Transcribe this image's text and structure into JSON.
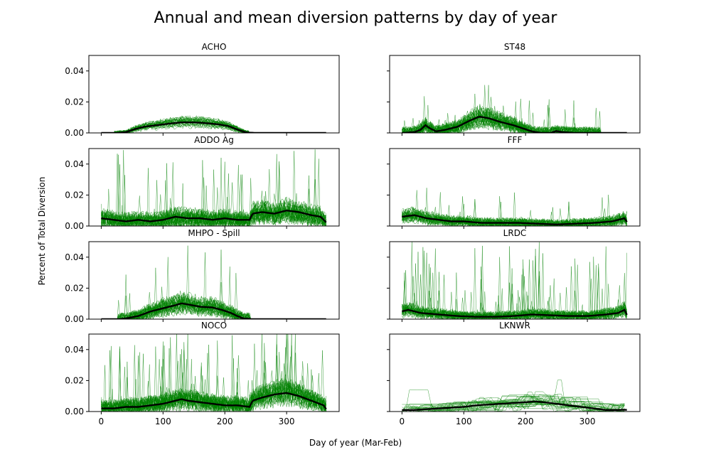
{
  "figure": {
    "title": "Annual and mean diversion patterns by day of year",
    "xlabel": "Day of year (Mar-Feb)",
    "ylabel": "Percent of Total Diversion"
  },
  "colors": {
    "annual": "#008000",
    "mean": "#000000",
    "frame": "#000000",
    "background": "#ffffff"
  },
  "chart_data": [
    {
      "type": "line",
      "title": "ACHO",
      "xlim": [
        -20,
        385
      ],
      "ylim": [
        0,
        0.05
      ],
      "x_ticks": [
        0,
        100,
        200,
        300
      ],
      "y_ticks": [
        0.0,
        0.02,
        0.04
      ],
      "y_tick_labels": [
        "0.00",
        "0.02",
        "0.04"
      ],
      "x_tick_labels": [
        "0",
        "100",
        "200",
        "300"
      ],
      "mean": {
        "x": [
          0,
          25,
          40,
          55,
          70,
          90,
          110,
          130,
          150,
          170,
          190,
          205,
          215,
          225,
          235,
          250,
          300,
          365
        ],
        "y": [
          0,
          0,
          0.0005,
          0.0025,
          0.004,
          0.005,
          0.006,
          0.0068,
          0.0068,
          0.0063,
          0.0055,
          0.0045,
          0.003,
          0.0015,
          0.0003,
          0,
          0,
          0
        ]
      },
      "annual": {
        "count": 30,
        "noise": 0.0014,
        "spikes": 0,
        "peak": 0.009,
        "zeroAfter": 238,
        "zeroBefore": 22
      }
    },
    {
      "type": "line",
      "title": "ST48",
      "xlim": [
        -20,
        385
      ],
      "ylim": [
        0,
        0.05
      ],
      "x_ticks": [
        0,
        100,
        200,
        300
      ],
      "y_ticks": [
        0.0,
        0.02,
        0.04
      ],
      "y_tick_labels": [
        "0.00",
        "0.02",
        "0.04"
      ],
      "x_tick_labels": [
        "0",
        "100",
        "200",
        "300"
      ],
      "mean": {
        "x": [
          0,
          20,
          30,
          38,
          45,
          55,
          70,
          90,
          110,
          125,
          140,
          160,
          180,
          195,
          210,
          225,
          240,
          250,
          260,
          280,
          300,
          365
        ],
        "y": [
          0,
          0.0005,
          0.002,
          0.005,
          0.003,
          0.001,
          0.002,
          0.004,
          0.008,
          0.0105,
          0.0095,
          0.007,
          0.005,
          0.003,
          0.001,
          0,
          0,
          0.0012,
          0.0005,
          0,
          0,
          0
        ]
      },
      "annual": {
        "count": 30,
        "noise": 0.004,
        "spikes": 3,
        "peak": 0.023,
        "zeroAfter": 320,
        "zeroBefore": 0
      }
    },
    {
      "type": "line",
      "title": "ADDO Ag",
      "xlim": [
        -20,
        385
      ],
      "ylim": [
        0,
        0.05
      ],
      "x_ticks": [
        0,
        100,
        200,
        300
      ],
      "y_ticks": [
        0.0,
        0.02,
        0.04
      ],
      "y_tick_labels": [
        "0.00",
        "0.02",
        "0.04"
      ],
      "x_tick_labels": [
        "0",
        "100",
        "200",
        "300"
      ],
      "mean": {
        "x": [
          0,
          20,
          40,
          60,
          80,
          100,
          120,
          140,
          160,
          180,
          200,
          220,
          240,
          245,
          260,
          280,
          300,
          320,
          340,
          355,
          365
        ],
        "y": [
          0.005,
          0.004,
          0.003,
          0.004,
          0.003,
          0.004,
          0.006,
          0.005,
          0.005,
          0.004,
          0.005,
          0.004,
          0.004,
          0.008,
          0.009,
          0.008,
          0.01,
          0.009,
          0.007,
          0.006,
          0.002
        ]
      },
      "annual": {
        "count": 30,
        "noise": 0.005,
        "spikes": 6,
        "peak": 0.05,
        "zeroAfter": 999,
        "zeroBefore": 0
      }
    },
    {
      "type": "line",
      "title": "FFF",
      "xlim": [
        -20,
        385
      ],
      "ylim": [
        0,
        0.05
      ],
      "x_ticks": [
        0,
        100,
        200,
        300
      ],
      "y_ticks": [
        0.0,
        0.02,
        0.04
      ],
      "y_tick_labels": [
        "0.00",
        "0.02",
        "0.04"
      ],
      "x_tick_labels": [
        "0",
        "100",
        "200",
        "300"
      ],
      "mean": {
        "x": [
          0,
          20,
          40,
          60,
          80,
          100,
          130,
          160,
          190,
          220,
          250,
          280,
          310,
          340,
          360,
          365
        ],
        "y": [
          0.006,
          0.007,
          0.005,
          0.004,
          0.003,
          0.003,
          0.002,
          0.002,
          0.002,
          0.0015,
          0.001,
          0.0015,
          0.002,
          0.003,
          0.005,
          0.002
        ]
      },
      "annual": {
        "count": 30,
        "noise": 0.003,
        "spikes": 2,
        "peak": 0.021,
        "zeroAfter": 999,
        "zeroBefore": 0
      }
    },
    {
      "type": "line",
      "title": "MHPO - Spill",
      "xlim": [
        -20,
        385
      ],
      "ylim": [
        0,
        0.05
      ],
      "x_ticks": [
        0,
        100,
        200,
        300
      ],
      "y_ticks": [
        0.0,
        0.02,
        0.04
      ],
      "y_tick_labels": [
        "0.00",
        "0.02",
        "0.04"
      ],
      "x_tick_labels": [
        "0",
        "100",
        "200",
        "300"
      ],
      "mean": {
        "x": [
          0,
          30,
          40,
          60,
          80,
          100,
          120,
          130,
          140,
          160,
          180,
          195,
          210,
          220,
          230,
          245,
          300,
          365
        ],
        "y": [
          0,
          0,
          0.0005,
          0.002,
          0.005,
          0.007,
          0.009,
          0.0102,
          0.0095,
          0.008,
          0.0075,
          0.006,
          0.004,
          0.002,
          0.0005,
          0,
          0,
          0
        ]
      },
      "annual": {
        "count": 30,
        "noise": 0.004,
        "spikes": 3,
        "peak": 0.04,
        "zeroAfter": 240,
        "zeroBefore": 28
      }
    },
    {
      "type": "line",
      "title": "LRDC",
      "xlim": [
        -20,
        385
      ],
      "ylim": [
        0,
        0.05
      ],
      "x_ticks": [
        0,
        100,
        200,
        300
      ],
      "y_ticks": [
        0.0,
        0.02,
        0.04
      ],
      "y_tick_labels": [
        "0.00",
        "0.02",
        "0.04"
      ],
      "x_tick_labels": [
        "0",
        "100",
        "200",
        "300"
      ],
      "mean": {
        "x": [
          0,
          10,
          30,
          60,
          90,
          120,
          150,
          180,
          210,
          240,
          270,
          300,
          330,
          350,
          360,
          365
        ],
        "y": [
          0.005,
          0.006,
          0.004,
          0.003,
          0.002,
          0.0015,
          0.0015,
          0.002,
          0.003,
          0.0025,
          0.002,
          0.002,
          0.003,
          0.004,
          0.006,
          0.002
        ]
      },
      "annual": {
        "count": 30,
        "noise": 0.003,
        "spikes": 8,
        "peak": 0.05,
        "zeroAfter": 999,
        "zeroBefore": 0
      }
    },
    {
      "type": "line",
      "title": "NOCO",
      "xlim": [
        -20,
        385
      ],
      "ylim": [
        0,
        0.05
      ],
      "x_ticks": [
        0,
        100,
        200,
        300
      ],
      "y_ticks": [
        0.0,
        0.02,
        0.04
      ],
      "y_tick_labels": [
        "0.00",
        "0.02",
        "0.04"
      ],
      "x_tick_labels": [
        "0",
        "100",
        "200",
        "300"
      ],
      "mean": {
        "x": [
          0,
          20,
          40,
          60,
          80,
          100,
          120,
          130,
          140,
          160,
          180,
          200,
          220,
          240,
          245,
          260,
          280,
          300,
          320,
          340,
          360,
          365
        ],
        "y": [
          0.002,
          0.002,
          0.003,
          0.003,
          0.004,
          0.005,
          0.007,
          0.008,
          0.007,
          0.006,
          0.005,
          0.004,
          0.004,
          0.003,
          0.007,
          0.009,
          0.011,
          0.012,
          0.01,
          0.007,
          0.004,
          0.001
        ]
      },
      "annual": {
        "count": 30,
        "noise": 0.005,
        "spikes": 8,
        "peak": 0.05,
        "zeroAfter": 999,
        "zeroBefore": 0
      }
    },
    {
      "type": "line",
      "title": "LKNWR",
      "xlim": [
        -20,
        385
      ],
      "ylim": [
        0,
        0.05
      ],
      "x_ticks": [
        0,
        100,
        200,
        300
      ],
      "y_ticks": [
        0.0,
        0.02,
        0.04
      ],
      "y_tick_labels": [
        "0.00",
        "0.02",
        "0.04"
      ],
      "x_tick_labels": [
        "0",
        "100",
        "200",
        "300"
      ],
      "mean": {
        "x": [
          0,
          20,
          40,
          60,
          80,
          100,
          120,
          140,
          160,
          180,
          200,
          215,
          230,
          250,
          270,
          290,
          310,
          330,
          350,
          360,
          365
        ],
        "y": [
          0.001,
          0.001,
          0.0015,
          0.002,
          0.0025,
          0.003,
          0.004,
          0.0045,
          0.005,
          0.0055,
          0.006,
          0.0065,
          0.006,
          0.005,
          0.004,
          0.003,
          0.002,
          0.001,
          0.001,
          0.0012,
          0.001
        ]
      },
      "annual": {
        "count": 30,
        "noise": 0.004,
        "spikes": 2,
        "peak": 0.028,
        "zeroAfter": 999,
        "zeroBefore": 0,
        "stepped": true
      }
    }
  ]
}
